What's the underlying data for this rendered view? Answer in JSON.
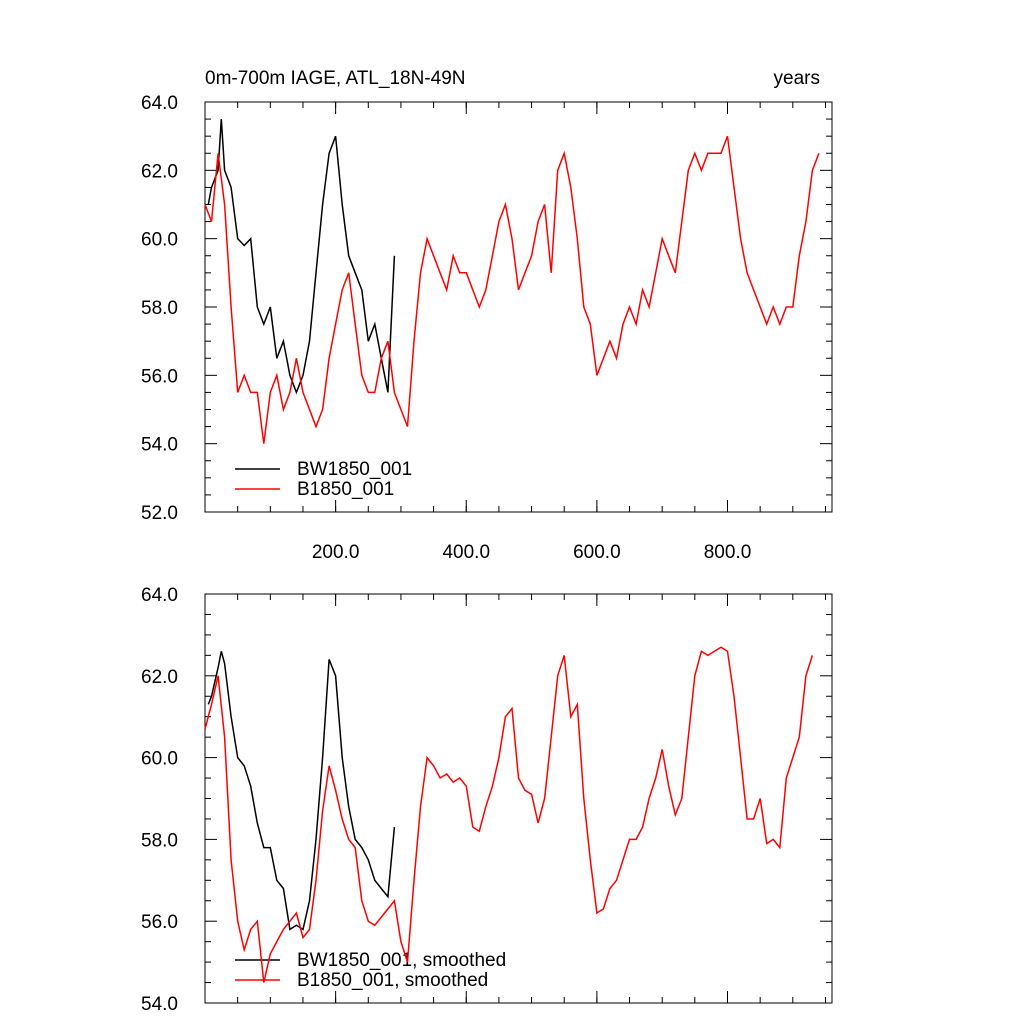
{
  "chart_data": [
    {
      "type": "line",
      "title": "0m-700m IAGE, ATL_18N-49N",
      "right_title": "years",
      "xlim": [
        0,
        960
      ],
      "ylim": [
        52,
        64
      ],
      "xticks": [
        {
          "value": 200,
          "label": "200.0"
        },
        {
          "value": 400,
          "label": "400.0"
        },
        {
          "value": 600,
          "label": "600.0"
        },
        {
          "value": 800,
          "label": "800.0"
        }
      ],
      "yticks": [
        {
          "value": 52,
          "label": "52.0"
        },
        {
          "value": 54,
          "label": "54.0"
        },
        {
          "value": 56,
          "label": "56.0"
        },
        {
          "value": 58,
          "label": "58.0"
        },
        {
          "value": 60,
          "label": "60.0"
        },
        {
          "value": 62,
          "label": "62.0"
        },
        {
          "value": 64,
          "label": "64.0"
        }
      ],
      "legend": "lower left",
      "series": [
        {
          "name": "BW1850_001",
          "color": "#000000",
          "x": [
            5,
            10,
            20,
            25,
            30,
            40,
            50,
            60,
            70,
            80,
            90,
            100,
            110,
            120,
            130,
            140,
            150,
            160,
            170,
            180,
            190,
            200,
            210,
            220,
            230,
            240,
            250,
            260,
            270,
            280,
            290
          ],
          "values": [
            61,
            61.5,
            62,
            63.5,
            62,
            61.5,
            60,
            59.8,
            60,
            58,
            57.5,
            58,
            56.5,
            57,
            56,
            55.5,
            56,
            57,
            59,
            61,
            62.5,
            63,
            61,
            59.5,
            59,
            58.5,
            57,
            57.5,
            56.5,
            55.5,
            59.5
          ]
        },
        {
          "name": "B1850_001",
          "color": "#ff0000",
          "x": [
            0,
            10,
            20,
            30,
            40,
            50,
            60,
            70,
            80,
            90,
            100,
            110,
            120,
            130,
            140,
            150,
            160,
            170,
            180,
            190,
            200,
            210,
            220,
            230,
            240,
            250,
            260,
            270,
            280,
            290,
            300,
            310,
            320,
            330,
            340,
            350,
            360,
            370,
            380,
            390,
            400,
            410,
            420,
            430,
            440,
            450,
            460,
            470,
            480,
            490,
            500,
            510,
            520,
            530,
            540,
            550,
            560,
            570,
            580,
            590,
            600,
            610,
            620,
            630,
            640,
            650,
            660,
            670,
            680,
            690,
            700,
            710,
            720,
            730,
            740,
            750,
            760,
            770,
            780,
            790,
            800,
            810,
            820,
            830,
            840,
            850,
            860,
            870,
            880,
            890,
            900,
            910,
            920,
            930,
            940
          ],
          "values": [
            61,
            60.5,
            62.5,
            61,
            58,
            55.5,
            56,
            55.5,
            55.5,
            54,
            55.5,
            56,
            55,
            55.5,
            56.5,
            55.5,
            55,
            54.5,
            55,
            56.5,
            57.5,
            58.5,
            59,
            57.5,
            56,
            55.5,
            55.5,
            56.5,
            57,
            55.5,
            55,
            54.5,
            57,
            59,
            60,
            59.5,
            59,
            58.5,
            59.5,
            59,
            59,
            58.5,
            58,
            58.5,
            59.5,
            60.5,
            61,
            60,
            58.5,
            59,
            59.5,
            60.5,
            61,
            59,
            62,
            62.5,
            61.5,
            60,
            58,
            57.5,
            56,
            56.5,
            57,
            56.5,
            57.5,
            58,
            57.5,
            58.5,
            58,
            59,
            60,
            59.5,
            59,
            60.5,
            62,
            62.5,
            62,
            62.5,
            62.5,
            62.5,
            63,
            61.5,
            60,
            59,
            58.5,
            58,
            57.5,
            58,
            57.5,
            58,
            58,
            59.5,
            60.5,
            62,
            62.5
          ]
        }
      ]
    },
    {
      "type": "line",
      "xlim": [
        0,
        960
      ],
      "ylim": [
        54,
        64
      ],
      "xticks": [
        200,
        400,
        600,
        800
      ],
      "yticks": [
        {
          "value": 54,
          "label": "54.0"
        },
        {
          "value": 56,
          "label": "56.0"
        },
        {
          "value": 58,
          "label": "58.0"
        },
        {
          "value": 60,
          "label": "60.0"
        },
        {
          "value": 62,
          "label": "62.0"
        },
        {
          "value": 64,
          "label": "64.0"
        }
      ],
      "legend": "lower left",
      "series": [
        {
          "name": "BW1850_001, smoothed",
          "color": "#000000",
          "x": [
            5,
            10,
            20,
            25,
            30,
            40,
            50,
            60,
            70,
            80,
            90,
            100,
            110,
            120,
            130,
            140,
            150,
            160,
            170,
            180,
            190,
            200,
            210,
            220,
            230,
            240,
            250,
            260,
            270,
            280,
            290
          ],
          "values": [
            61.3,
            61.5,
            62.2,
            62.6,
            62.3,
            61,
            60,
            59.8,
            59.3,
            58.4,
            57.8,
            57.8,
            57,
            56.8,
            55.8,
            55.9,
            55.8,
            56.5,
            58,
            60,
            62.4,
            62,
            60,
            58.8,
            58,
            57.8,
            57.5,
            57,
            56.8,
            56.6,
            58.3
          ]
        },
        {
          "name": "B1850_001, smoothed",
          "color": "#ff0000",
          "x": [
            0,
            10,
            20,
            30,
            40,
            50,
            60,
            70,
            80,
            90,
            100,
            110,
            120,
            130,
            140,
            150,
            160,
            170,
            180,
            190,
            200,
            210,
            220,
            230,
            240,
            250,
            260,
            270,
            280,
            290,
            300,
            310,
            320,
            330,
            340,
            350,
            360,
            370,
            380,
            390,
            400,
            410,
            420,
            430,
            440,
            450,
            460,
            470,
            480,
            490,
            500,
            510,
            520,
            530,
            540,
            550,
            560,
            570,
            580,
            590,
            600,
            610,
            620,
            630,
            640,
            650,
            660,
            670,
            680,
            690,
            700,
            710,
            720,
            730,
            740,
            750,
            760,
            770,
            780,
            790,
            800,
            810,
            820,
            830,
            840,
            850,
            860,
            870,
            880,
            890,
            900,
            910,
            920,
            930
          ],
          "values": [
            60.7,
            61.3,
            62,
            60.5,
            57.5,
            56,
            55.3,
            55.8,
            56,
            54.5,
            55.2,
            55.5,
            55.8,
            56,
            56.2,
            55.6,
            55.8,
            57,
            58.7,
            59.8,
            59.2,
            58.5,
            58,
            57.8,
            56.5,
            56,
            55.9,
            56.1,
            56.3,
            56.5,
            55.5,
            55,
            57,
            58.8,
            60,
            59.8,
            59.5,
            59.6,
            59.4,
            59.5,
            59.3,
            58.3,
            58.2,
            58.8,
            59.3,
            60,
            61,
            61.2,
            59.5,
            59.2,
            59.1,
            58.4,
            59,
            60.5,
            62,
            62.5,
            61,
            61.3,
            59,
            57.5,
            56.2,
            56.3,
            56.8,
            57,
            57.5,
            58,
            58,
            58.3,
            59,
            59.5,
            60.2,
            59.3,
            58.6,
            59,
            60.5,
            62,
            62.6,
            62.5,
            62.6,
            62.7,
            62.6,
            61.5,
            60,
            58.5,
            58.5,
            59,
            57.9,
            58,
            57.8,
            59.5,
            60,
            60.5,
            62,
            62.5
          ]
        }
      ]
    }
  ]
}
